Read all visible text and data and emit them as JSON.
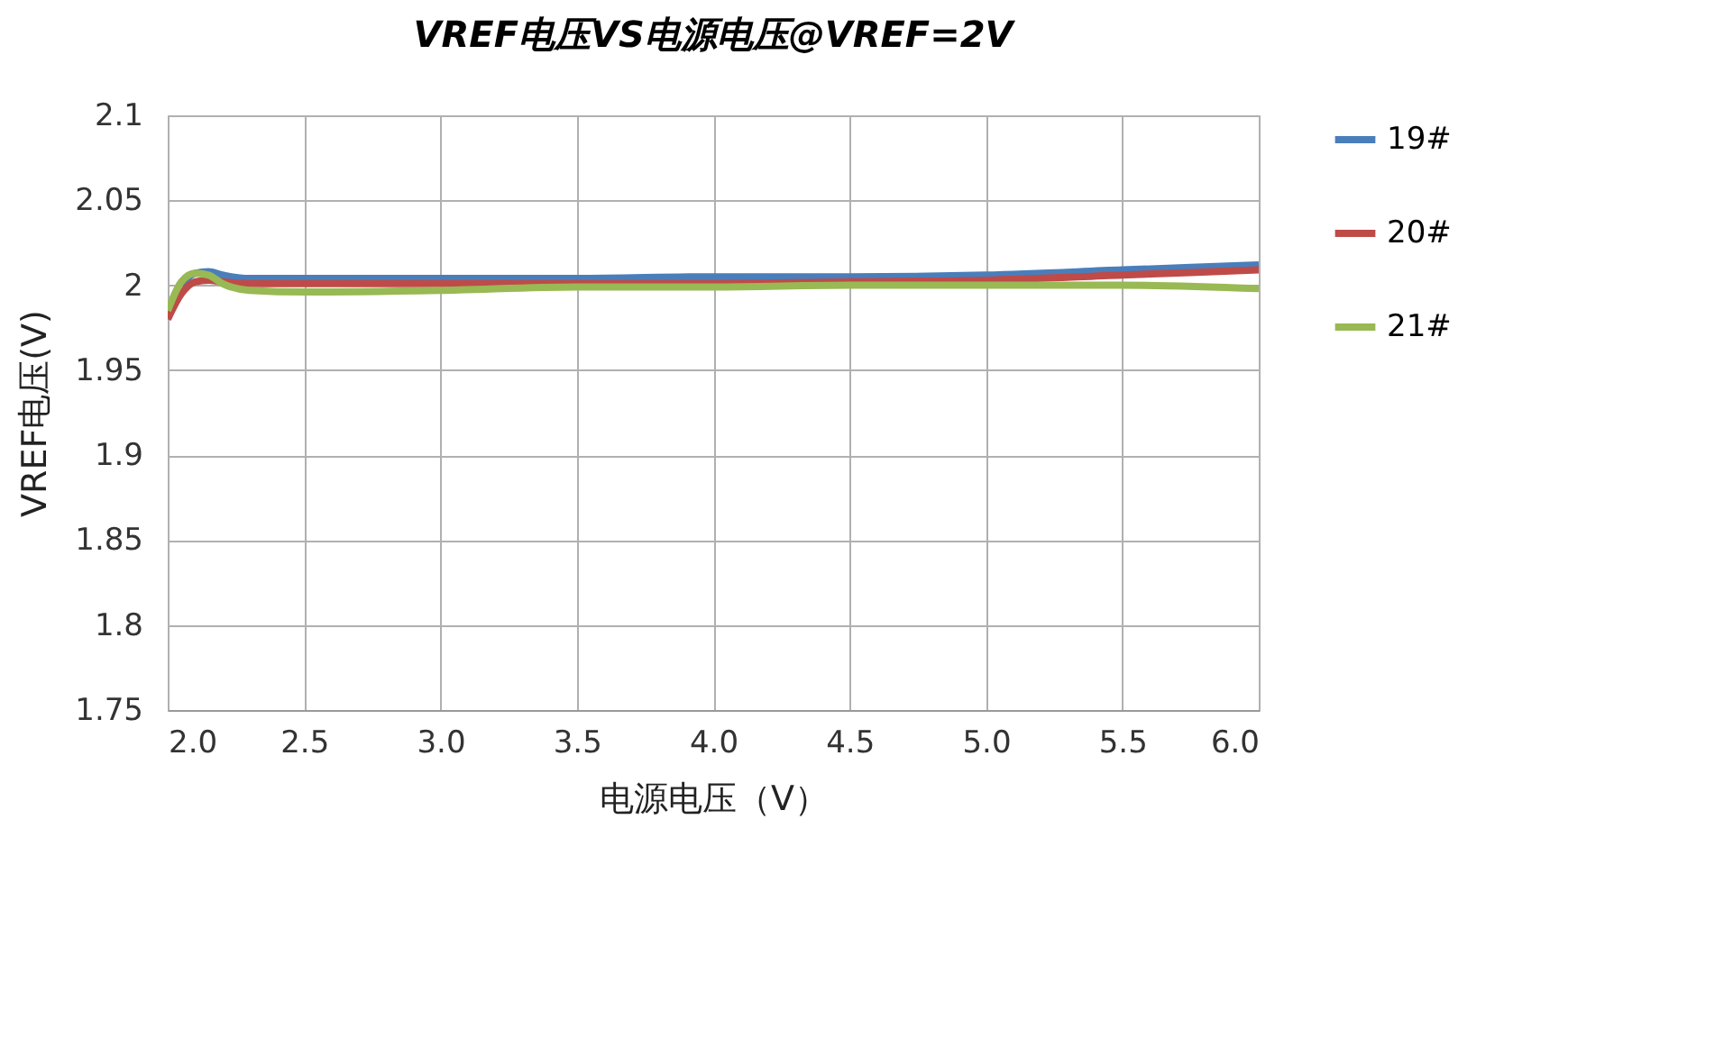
{
  "chart_data": {
    "type": "line",
    "title": "VREF电压VS电源电压@VREF=2V",
    "xlabel": "电源电压（V）",
    "ylabel": "VREF电压(V)",
    "xlim": [
      2,
      6
    ],
    "xticks": [
      {
        "value": 2,
        "label": "2.0"
      },
      {
        "value": 2.5,
        "label": "2.5"
      },
      {
        "value": 3,
        "label": "3.0"
      },
      {
        "value": 3.5,
        "label": "3.5"
      },
      {
        "value": 4,
        "label": "4.0"
      },
      {
        "value": 4.5,
        "label": "4.5"
      },
      {
        "value": 5,
        "label": "5.0"
      },
      {
        "value": 5.5,
        "label": "5.5"
      },
      {
        "value": 6,
        "label": "6.0"
      }
    ],
    "ylim": [
      1.75,
      2.1
    ],
    "yticks": [
      1.75,
      1.8,
      1.85,
      1.9,
      1.95,
      2,
      2.05,
      2.1
    ],
    "grid": true,
    "legend": "right",
    "marker": "none",
    "line_style": "solid",
    "x": [
      2.0,
      2.05,
      2.1,
      2.15,
      2.2,
      2.3,
      2.5,
      3.0,
      3.5,
      4.0,
      4.5,
      5.0,
      5.5,
      6.0
    ],
    "series": [
      {
        "name": "19#",
        "color": "#4a7ebb",
        "values": [
          null,
          2.0,
          2.007,
          2.008,
          2.006,
          2.004,
          2.004,
          2.004,
          2.004,
          2.005,
          2.005,
          2.006,
          2.009,
          2.012
        ]
      },
      {
        "name": "20#",
        "color": "#be4b48",
        "values": [
          1.98,
          1.995,
          2.002,
          2.003,
          2.002,
          2.001,
          2.001,
          2.001,
          2.001,
          2.001,
          2.002,
          2.003,
          2.006,
          2.009
        ]
      },
      {
        "name": "21#",
        "color": "#98b954",
        "values": [
          1.985,
          2.002,
          2.007,
          2.006,
          2.001,
          1.997,
          1.996,
          1.997,
          1.999,
          1.999,
          2.0,
          2.0,
          2.0,
          1.998
        ]
      }
    ]
  }
}
